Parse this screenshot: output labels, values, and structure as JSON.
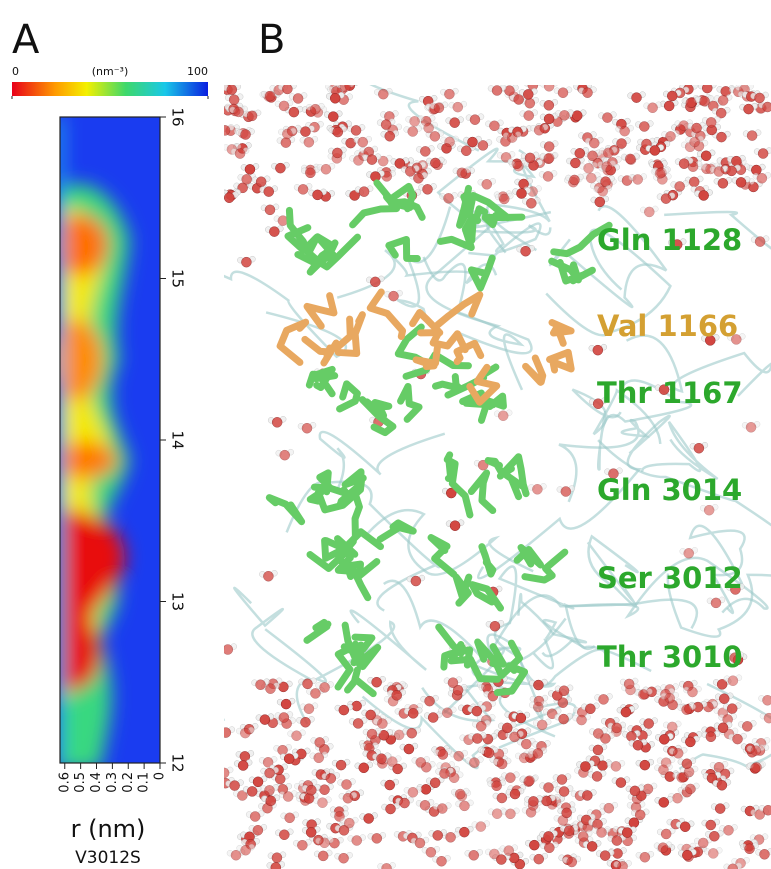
{
  "chart_data": {
    "type": "heatmap",
    "panel_label": "A",
    "colorbar": {
      "label": "(nm⁻³)",
      "lim": [
        0,
        100
      ],
      "ticks": [
        0,
        100
      ]
    },
    "xlabel": "r (nm)",
    "subtitle": "V3012S",
    "xlim": [
      0.63,
      0
    ],
    "xticks": [
      0.6,
      0.5,
      0.4,
      0.3,
      0.2,
      0.1,
      0
    ],
    "ylim": [
      12,
      16
    ],
    "yticks": [
      12,
      13,
      14,
      15,
      16
    ]
  },
  "panel_b": {
    "label": "B",
    "residues": [
      {
        "name": "Gln 1128",
        "color": "#2ca82c"
      },
      {
        "name": "Val 1166",
        "color": "#d4a032"
      },
      {
        "name": "Thr 1167",
        "color": "#2ca82c"
      },
      {
        "name": "Gln 3014",
        "color": "#2ca82c"
      },
      {
        "name": "Ser 3012",
        "color": "#2ca82c"
      },
      {
        "name": "Thr 3010",
        "color": "#2ca82c"
      }
    ]
  }
}
